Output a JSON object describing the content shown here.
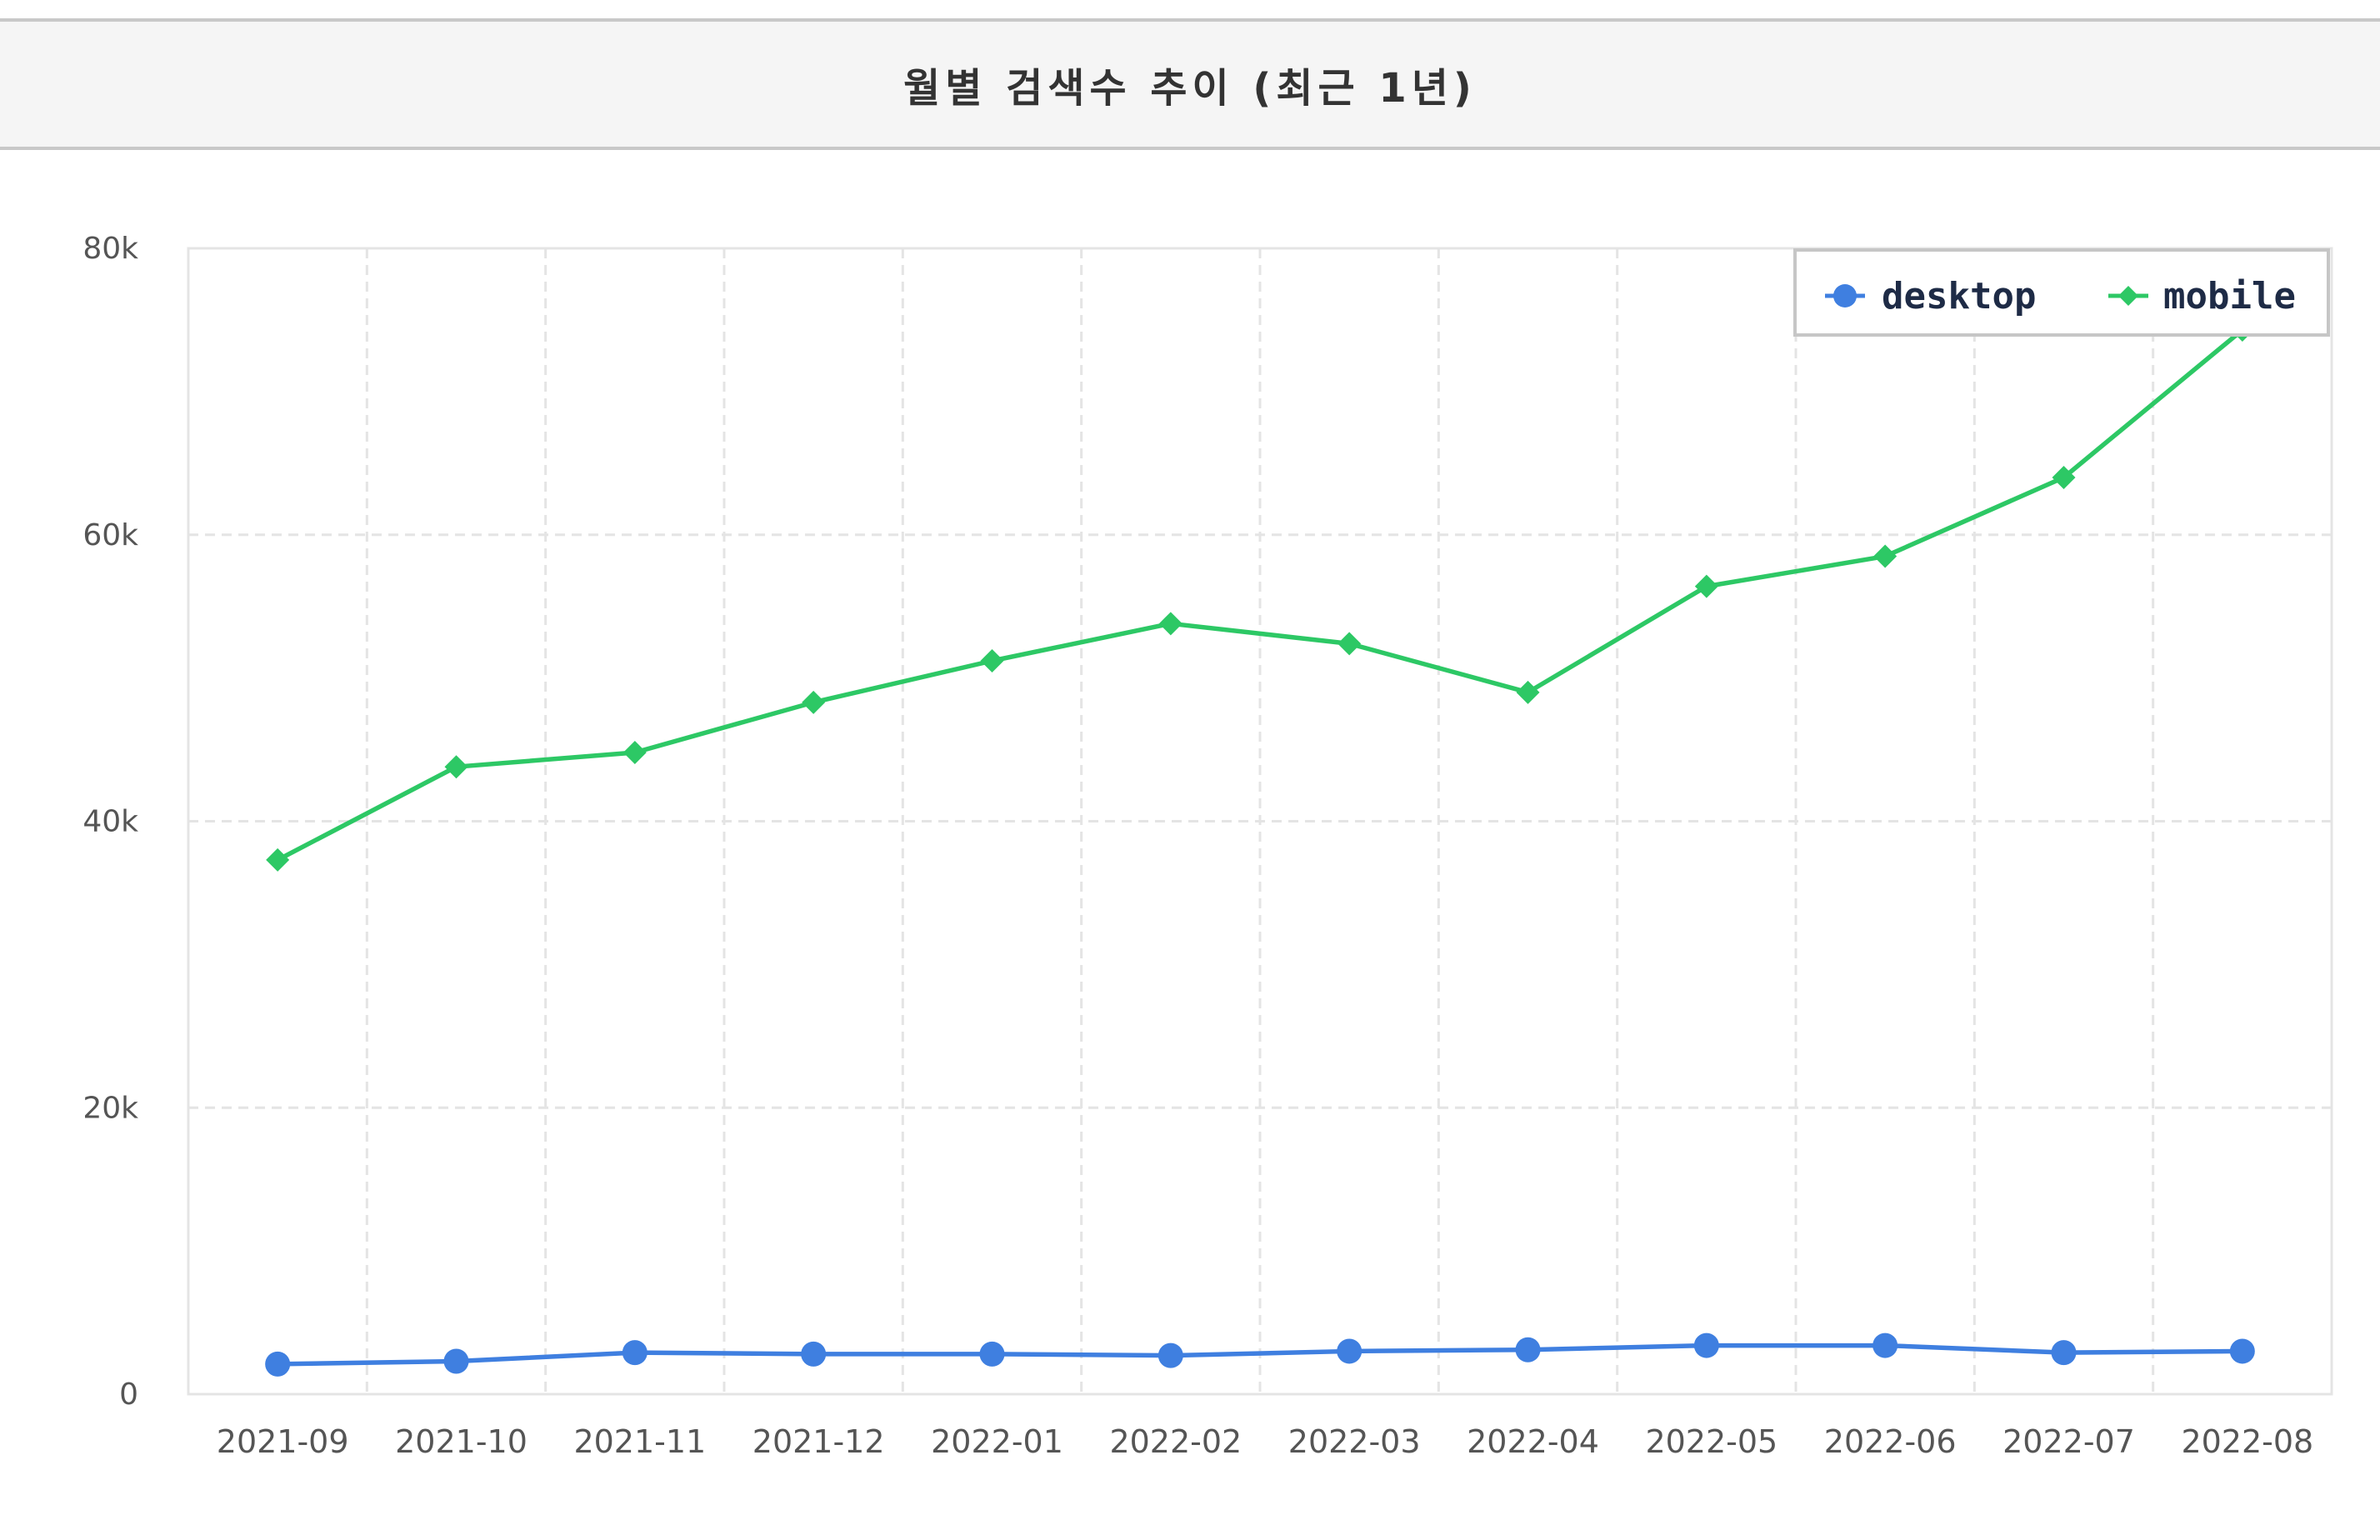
{
  "chart_data": {
    "type": "line",
    "title": "월별 검색수 추이 (최근 1년)",
    "xlabel": "",
    "ylabel": "",
    "categories": [
      "2021-09",
      "2021-10",
      "2021-11",
      "2021-12",
      "2022-01",
      "2022-02",
      "2022-03",
      "2022-04",
      "2022-05",
      "2022-06",
      "2022-07",
      "2022-08"
    ],
    "ylim": [
      0,
      80000
    ],
    "yticks": [
      0,
      20000,
      40000,
      60000,
      80000
    ],
    "ytick_labels": [
      "0",
      "20k",
      "40k",
      "60k",
      "80k"
    ],
    "grid": true,
    "legend_position": "top-right",
    "series": [
      {
        "name": "desktop",
        "color": "#3f7fe0",
        "marker": "circle",
        "values": [
          2100,
          2300,
          2900,
          2800,
          2800,
          2700,
          3000,
          3100,
          3400,
          3400,
          2900,
          3000
        ]
      },
      {
        "name": "mobile",
        "color": "#2dc865",
        "marker": "diamond",
        "values": [
          37300,
          43800,
          44800,
          48300,
          51200,
          53800,
          52400,
          49000,
          56400,
          58500,
          64000,
          74300
        ]
      }
    ]
  }
}
